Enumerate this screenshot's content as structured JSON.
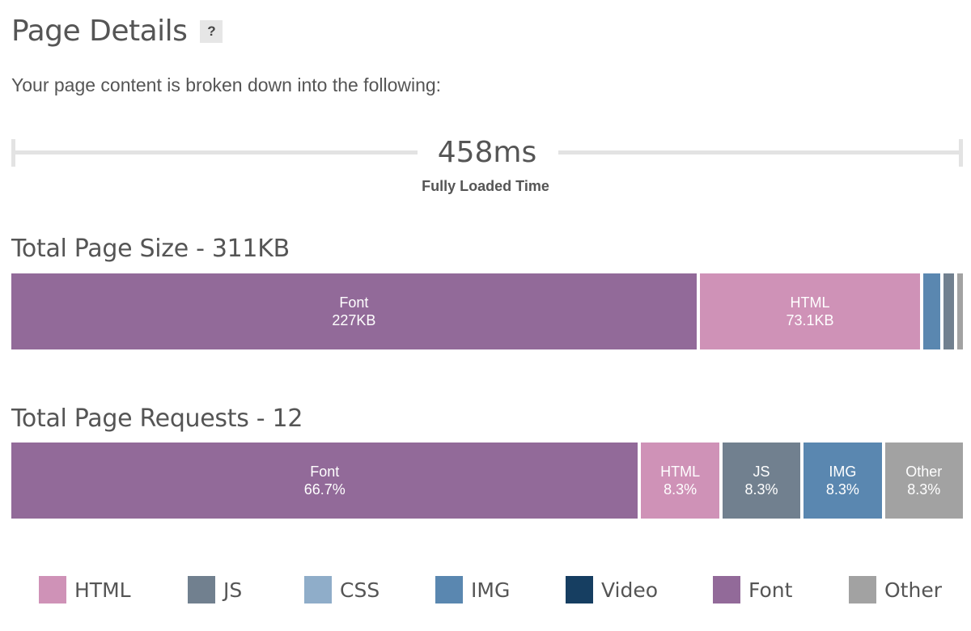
{
  "header": {
    "title": "Page Details",
    "help_label": "?"
  },
  "intro": "Your page content is broken down into the following:",
  "timeline": {
    "value": "458ms",
    "label": "Fully Loaded Time"
  },
  "colors": {
    "HTML": "#cf92b7",
    "JS": "#71808f",
    "CSS": "#8fadc9",
    "IMG": "#5a87b0",
    "Video": "#163e61",
    "Font": "#926a99",
    "Other": "#a2a2a2"
  },
  "chart_data": [
    {
      "type": "bar",
      "title": "Total Page Size - 311KB",
      "orientation": "horizontal-stacked",
      "unit": "KB",
      "segments": [
        {
          "name": "Font",
          "value": 227,
          "label": "227KB"
        },
        {
          "name": "HTML",
          "value": 73.1,
          "label": "73.1KB"
        },
        {
          "name": "IMG",
          "value": 5.5,
          "label": ""
        },
        {
          "name": "JS",
          "value": 3.5,
          "label": ""
        },
        {
          "name": "Other",
          "value": 1.9,
          "label": ""
        }
      ]
    },
    {
      "type": "bar",
      "title": "Total Page Requests - 12",
      "orientation": "horizontal-stacked",
      "unit": "%",
      "segments": [
        {
          "name": "Font",
          "value": 66.7,
          "label": "66.7%"
        },
        {
          "name": "HTML",
          "value": 8.3,
          "label": "8.3%"
        },
        {
          "name": "JS",
          "value": 8.3,
          "label": "8.3%"
        },
        {
          "name": "IMG",
          "value": 8.3,
          "label": "8.3%"
        },
        {
          "name": "Other",
          "value": 8.3,
          "label": "8.3%"
        }
      ]
    }
  ],
  "legend": [
    "HTML",
    "JS",
    "CSS",
    "IMG",
    "Video",
    "Font",
    "Other"
  ]
}
